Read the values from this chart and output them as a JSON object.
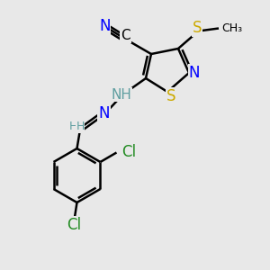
{
  "bg_color": "#e8e8e8",
  "bond_color": "#000000",
  "bond_width": 1.8,
  "dbo": 0.12,
  "atom_colors": {
    "N": "#0000ff",
    "S": "#ccaa00",
    "Cl": "#228B22",
    "C": "#000000",
    "H": "#5f9ea0"
  },
  "font_size": 11,
  "font_size_small": 9
}
